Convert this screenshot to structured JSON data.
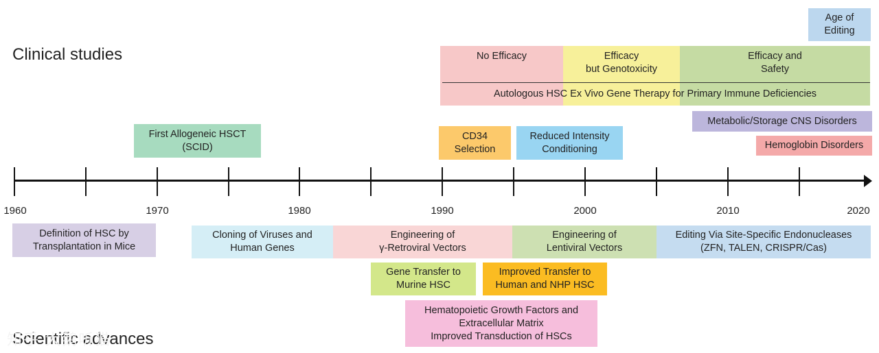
{
  "sections": {
    "clinical": "Clinical studies",
    "scientific": "Scientific advances"
  },
  "years": [
    "1960",
    "1970",
    "1980",
    "1990",
    "2000",
    "2010",
    "2020"
  ],
  "clinical_boxes": {
    "age_of_editing": {
      "lines": [
        "Age of",
        "Editing"
      ],
      "color": "#bcd7ee"
    },
    "no_efficacy": {
      "lines": [
        "No Efficacy"
      ],
      "color": "#f7c8c8"
    },
    "efficacy_genotoxicity": {
      "lines": [
        "Efficacy",
        "but Genotoxicity"
      ],
      "color": "#f7f09a"
    },
    "efficacy_safety": {
      "lines": [
        "Efficacy and",
        "Safety"
      ],
      "color": "#c5dba3"
    },
    "autologous_hsc": {
      "lines": [
        "Autologous HSC Ex Vivo Gene Therapy for Primary Immune Deficiencies"
      ]
    },
    "metabolic_cns": {
      "lines": [
        "Metabolic/Storage CNS Disorders"
      ],
      "color": "#bcb6dc"
    },
    "hemoglobin": {
      "lines": [
        "Hemoglobin Disorders"
      ],
      "color": "#f4a9a9"
    },
    "first_allogeneic": {
      "lines": [
        "First Allogeneic HSCT",
        "(SCID)"
      ],
      "color": "#a7dbbf"
    },
    "cd34_selection": {
      "lines": [
        "CD34",
        "Selection"
      ],
      "color": "#fcc96b"
    },
    "reduced_intensity": {
      "lines": [
        "Reduced Intensity",
        "Conditioning"
      ],
      "color": "#99d5f2"
    }
  },
  "scientific_boxes": {
    "definition_hsc": {
      "lines": [
        "Definition of HSC by",
        "Transplantation in Mice"
      ],
      "color": "#d7cfe5"
    },
    "cloning_viruses": {
      "lines": [
        "Cloning of Viruses and",
        "Human Genes"
      ],
      "color": "#d5eef6"
    },
    "engineering_retroviral": {
      "lines": [
        "Engineering of",
        "γ-Retroviral Vectors"
      ],
      "color": "#f9d6d6"
    },
    "engineering_lentiviral": {
      "lines": [
        "Engineering of",
        "Lentiviral Vectors"
      ],
      "color": "#cde0b2"
    },
    "editing_endonucleases": {
      "lines": [
        "Editing Via Site-Specific Endonucleases",
        "(ZFN, TALEN, CRISPR/Cas)"
      ],
      "color": "#c5dcf0"
    },
    "gene_transfer_murine": {
      "lines": [
        "Gene Transfer to",
        "Murine HSC"
      ],
      "color": "#d3e78a"
    },
    "improved_transfer": {
      "lines": [
        "Improved Transfer to",
        "Human and NHP HSC"
      ],
      "color": "#fbbc22"
    },
    "growth_factors": {
      "lines": [
        "Hematopoietic Growth Factors and",
        "Extracellular Matrix",
        "Improved Transduction of HSCs"
      ],
      "color": "#f6bedc"
    }
  },
  "watermark": "知乎 大鹅听猫"
}
